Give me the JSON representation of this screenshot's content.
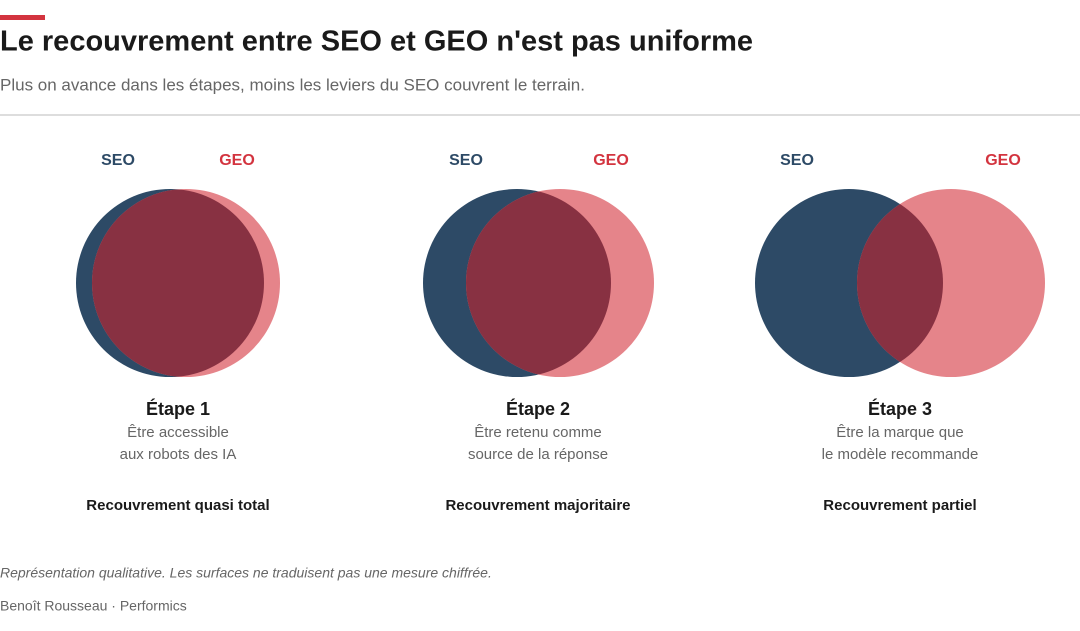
{
  "header": {
    "title": "Le recouvrement entre SEO et GEO n'est pas uniforme",
    "subtitle": "Plus on avance dans les étapes, moins les leviers du SEO couvrent le terrain."
  },
  "panels": [
    {
      "seo_label": "SEO",
      "geo_label": "GEO",
      "stage": "Étape 1",
      "description": [
        "Être accessible",
        "aux robots des IA"
      ],
      "overlap": "Recouvrement quasi total"
    },
    {
      "seo_label": "SEO",
      "geo_label": "GEO",
      "stage": "Étape 2",
      "description": [
        "Être retenu comme",
        "source de la réponse"
      ],
      "overlap": "Recouvrement majoritaire"
    },
    {
      "seo_label": "SEO",
      "geo_label": "GEO",
      "stage": "Étape 3",
      "description": [
        "Être la marque que",
        "le modèle recommande"
      ],
      "overlap": "Recouvrement partiel"
    }
  ],
  "footer": {
    "note": "Représentation qualitative. Les surfaces ne traduisent pas une mesure chiffrée.",
    "source": "Benoît Rousseau · Performics"
  }
}
